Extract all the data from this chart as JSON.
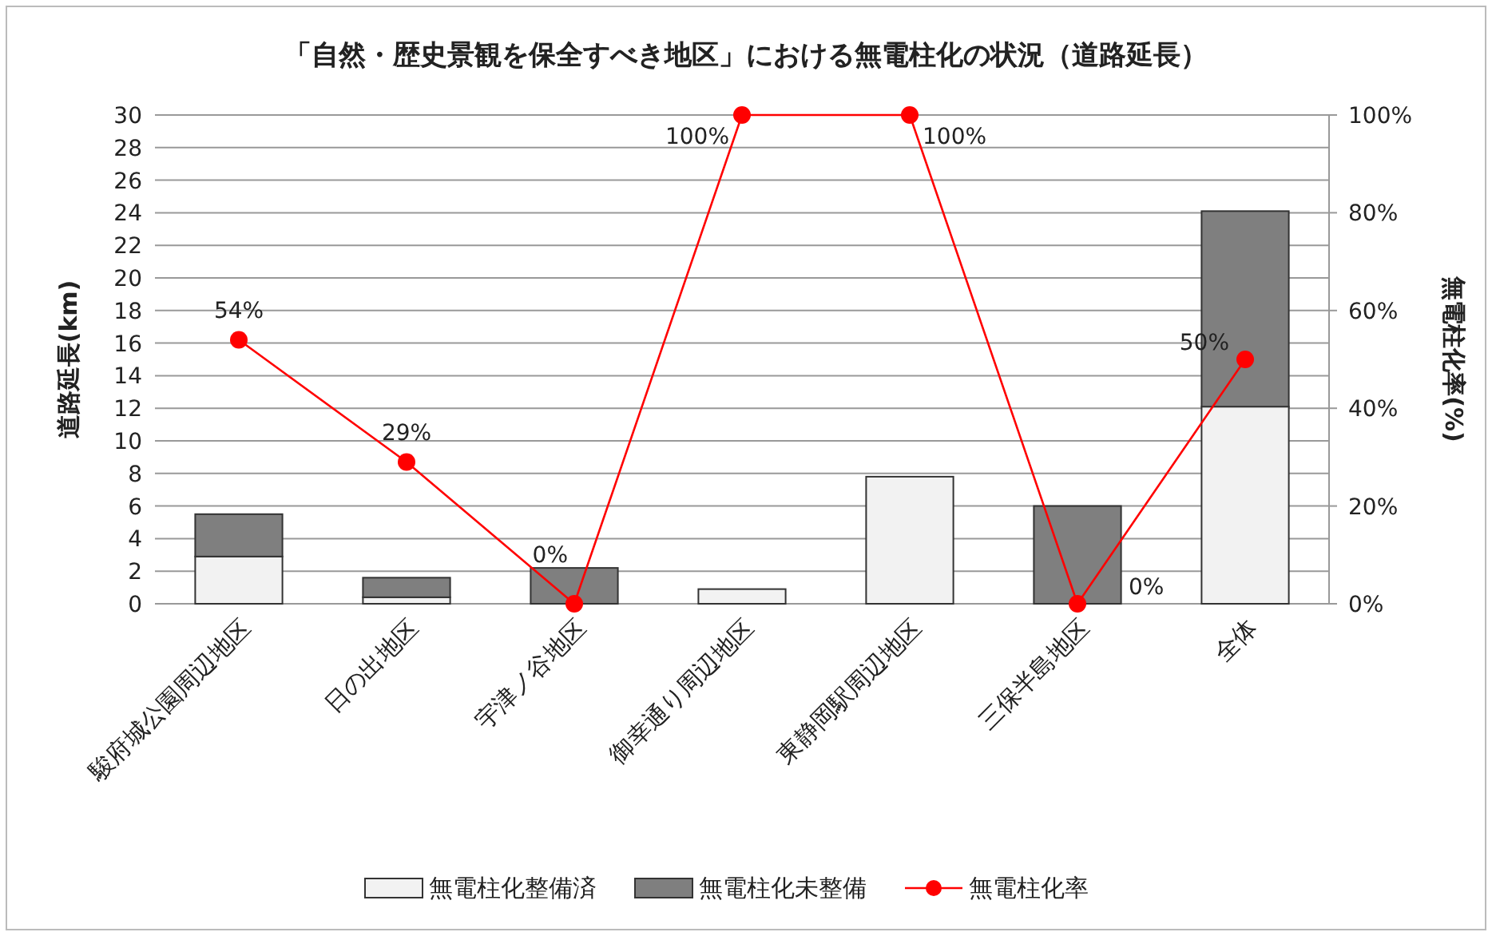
{
  "chart_data": {
    "type": "bar",
    "stacked": true,
    "title": "「自然・歴史景観を保全すべき地区」における無電柱化の状況（道路延長）",
    "categories": [
      "駿府城公園周辺地区",
      "日の出地区",
      "宇津ノ谷地区",
      "御幸通り周辺地区",
      "東静岡駅周辺地区",
      "三保半島地区",
      "全体"
    ],
    "series": [
      {
        "name": "無電柱化整備済",
        "color": "#f2f2f2",
        "values": [
          2.9,
          0.4,
          0,
          0.9,
          7.8,
          0,
          12.1
        ]
      },
      {
        "name": "無電柱化未整備",
        "color": "#7f7f7f",
        "values": [
          2.6,
          1.2,
          2.2,
          0,
          0,
          6.0,
          12.0
        ]
      },
      {
        "name": "無電柱化率",
        "type": "line",
        "axis": "y2",
        "color": "#ff0000",
        "marker": "circle",
        "values": [
          54,
          29,
          0,
          100,
          100,
          0,
          50
        ],
        "value_labels": [
          "54%",
          "29%",
          "0%",
          "100%",
          "100%",
          "0%",
          "50%"
        ]
      }
    ],
    "ylabel": "道路延長(km)",
    "y2label": "無電柱化率(%)",
    "ylim": [
      0,
      30
    ],
    "yticks": [
      0,
      2,
      4,
      6,
      8,
      10,
      12,
      14,
      16,
      18,
      20,
      22,
      24,
      26,
      28,
      30
    ],
    "y2lim": [
      0,
      100
    ],
    "y2ticks": [
      {
        "value": 0,
        "label": "0%"
      },
      {
        "value": 20,
        "label": "20%"
      },
      {
        "value": 40,
        "label": "40%"
      },
      {
        "value": 60,
        "label": "60%"
      },
      {
        "value": 80,
        "label": "80%"
      },
      {
        "value": 100,
        "label": "100%"
      }
    ],
    "grid": "y",
    "legend": "bottom"
  }
}
